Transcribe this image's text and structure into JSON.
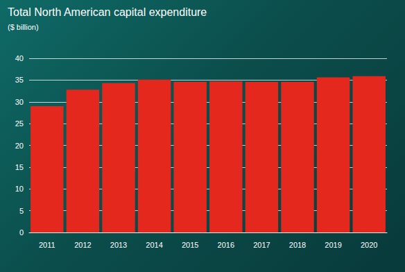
{
  "chart_data": {
    "type": "bar",
    "title": "Total North American capital expenditure",
    "subtitle": "($ billion)",
    "categories": [
      "2011",
      "2012",
      "2013",
      "2014",
      "2015",
      "2016",
      "2017",
      "2018",
      "2019",
      "2020"
    ],
    "values": [
      29,
      32.8,
      34.3,
      35.1,
      34.6,
      34.7,
      34.6,
      34.6,
      35.6,
      35.9
    ],
    "color": "#e4281d",
    "ylim": [
      0,
      40
    ],
    "yticks": [
      0,
      5,
      10,
      15,
      20,
      25,
      30,
      35,
      40
    ],
    "grid": true
  }
}
